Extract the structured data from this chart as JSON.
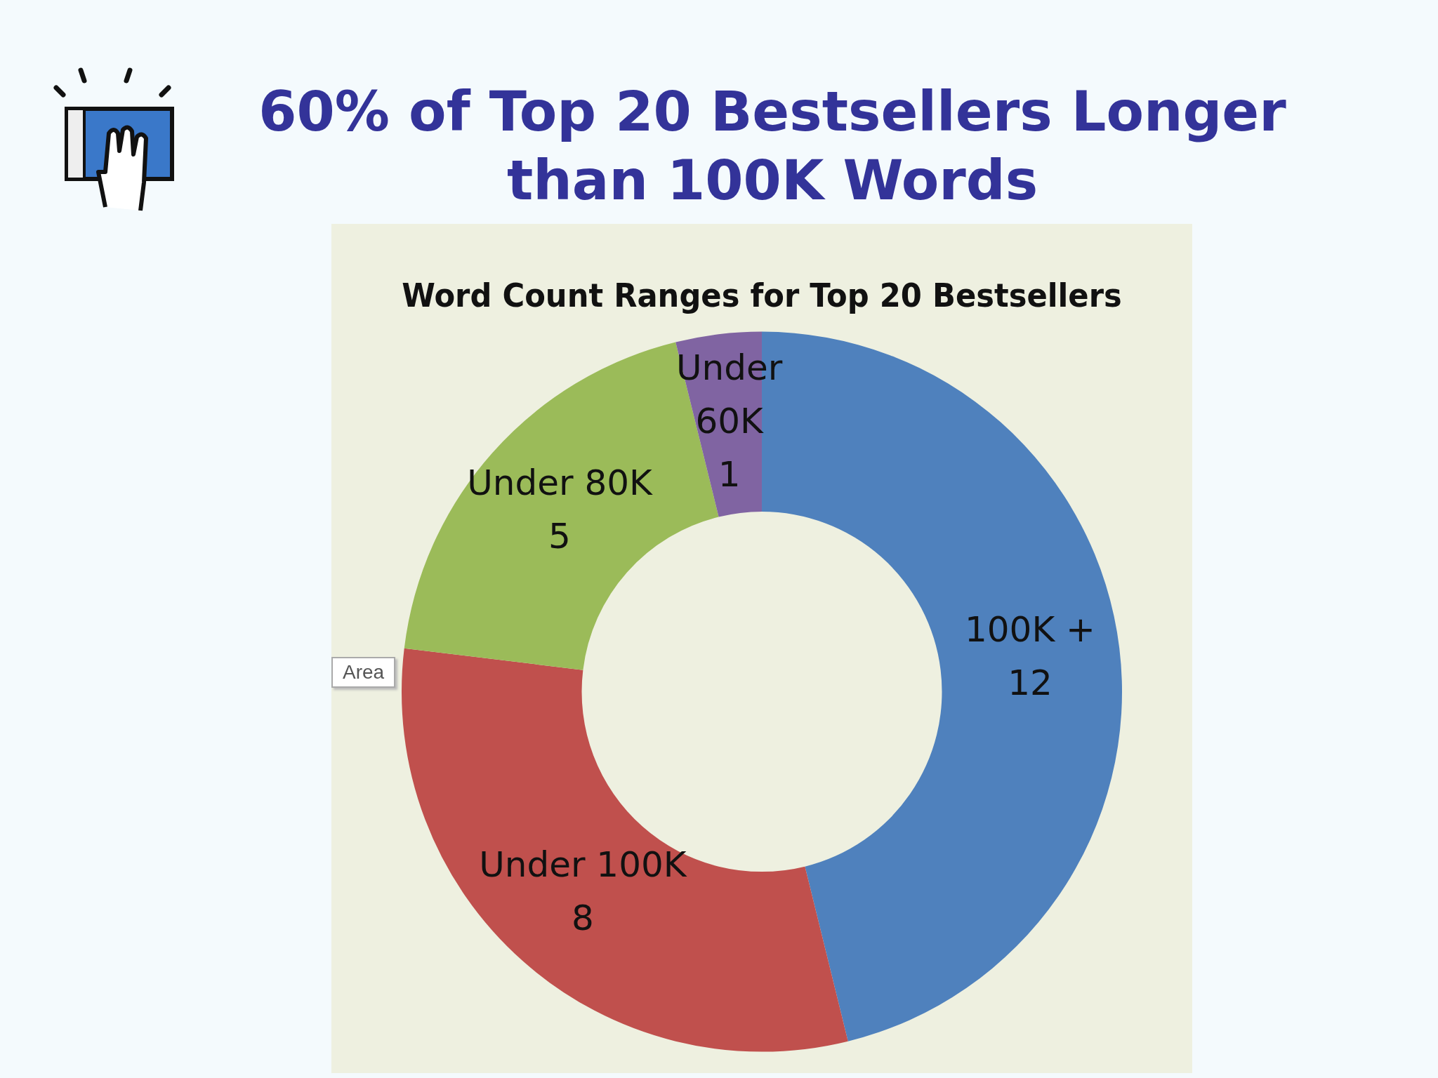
{
  "chart_data": {
    "type": "donut",
    "title": "60% of Top 20 Bestsellers Longer than 100K Words",
    "subtitle": "Word Count Ranges for Top 20 Bestsellers",
    "categories": [
      "100K +",
      "Under 100K",
      "Under 80K",
      "Under 60K"
    ],
    "values": [
      12,
      8,
      5,
      1
    ],
    "colors": [
      "#4f81bd",
      "#c0504d",
      "#9bbb59",
      "#8064a2"
    ],
    "data_labels": true,
    "legend": false,
    "annotations": [
      "Area"
    ]
  }
}
